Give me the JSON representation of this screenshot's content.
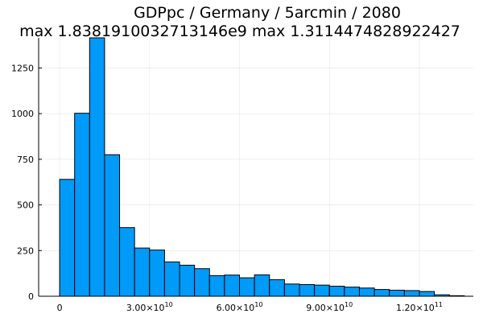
{
  "chart_data": {
    "type": "bar",
    "title_lines": [
      "GDPpc / Germany / 5arcmin / 2080",
      "max 1.8381910032713146e9  max 1.3114474828922427"
    ],
    "xlabel": "",
    "ylabel": "",
    "bin_width": 5000000000,
    "bin_start": 0,
    "values": [
      640,
      1002,
      1415,
      775,
      376,
      264,
      253,
      188,
      170,
      151,
      113,
      116,
      101,
      117,
      91,
      67,
      64,
      61,
      55,
      50,
      45,
      37,
      33,
      31,
      26,
      8,
      3
    ],
    "xlim": [
      -7000000000,
      138000000000
    ],
    "ylim": [
      0,
      1415
    ],
    "x_ticks": [
      {
        "value": 0,
        "mantissa": "0",
        "exp": ""
      },
      {
        "value": 30000000000,
        "mantissa": "3.00×10",
        "exp": "10"
      },
      {
        "value": 60000000000,
        "mantissa": "6.00×10",
        "exp": "10"
      },
      {
        "value": 90000000000,
        "mantissa": "9.00×10",
        "exp": "10"
      },
      {
        "value": 120000000000,
        "mantissa": "1.20×10",
        "exp": "11"
      }
    ],
    "y_ticks": [
      {
        "value": 0,
        "label": "0"
      },
      {
        "value": 250,
        "label": "250"
      },
      {
        "value": 500,
        "label": "500"
      },
      {
        "value": 750,
        "label": "750"
      },
      {
        "value": 1000,
        "label": "1000"
      },
      {
        "value": 1250,
        "label": "1250"
      }
    ],
    "grid": true,
    "legend": "none",
    "colors": {
      "bar": "#009af9",
      "edge": "#000000"
    }
  }
}
